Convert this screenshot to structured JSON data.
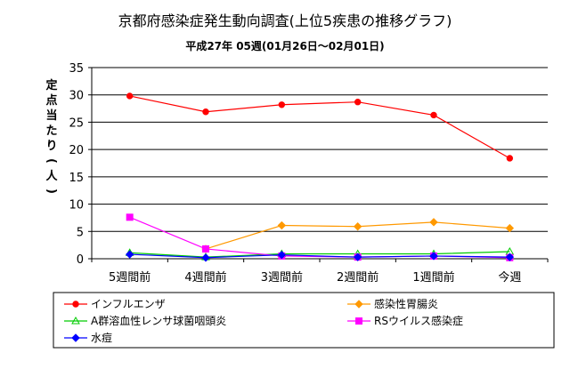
{
  "chart_data": {
    "type": "line",
    "title": "京都府感染症発生動向調査(上位5疾患の推移グラフ)",
    "subtitle": "平成27年 05週(01月26日～02月01日)",
    "ylabel": "定点当たり(人)",
    "xlabel": "",
    "categories": [
      "5週間前",
      "4週間前",
      "3週間前",
      "2週間前",
      "1週間前",
      "今週"
    ],
    "ylim": [
      0,
      35
    ],
    "yticks": [
      0,
      5,
      10,
      15,
      20,
      25,
      30,
      35
    ],
    "grid": true,
    "legend_position": "bottom",
    "series": [
      {
        "name": "インフルエンザ",
        "color": "#ff0000",
        "marker": "circle",
        "values": [
          29.8,
          26.9,
          28.2,
          28.7,
          26.3,
          18.4
        ]
      },
      {
        "name": "感染性胃腸炎",
        "color": "#ff9900",
        "marker": "diamond",
        "values": [
          null,
          1.8,
          6.1,
          5.9,
          6.7,
          5.6
        ]
      },
      {
        "name": "A群溶血性レンサ球菌咽頭炎",
        "color": "#00cc00",
        "marker": "triangle",
        "values": [
          1.1,
          0.3,
          0.9,
          0.9,
          0.9,
          1.3
        ]
      },
      {
        "name": "RSウイルス感染症",
        "color": "#ff00ff",
        "marker": "square",
        "values": [
          7.6,
          1.8,
          0.5,
          0.3,
          0.5,
          0.2
        ]
      },
      {
        "name": "水痘",
        "color": "#0000ff",
        "marker": "diamond",
        "values": [
          0.8,
          0.2,
          0.7,
          0.3,
          0.5,
          0.3
        ]
      }
    ]
  }
}
